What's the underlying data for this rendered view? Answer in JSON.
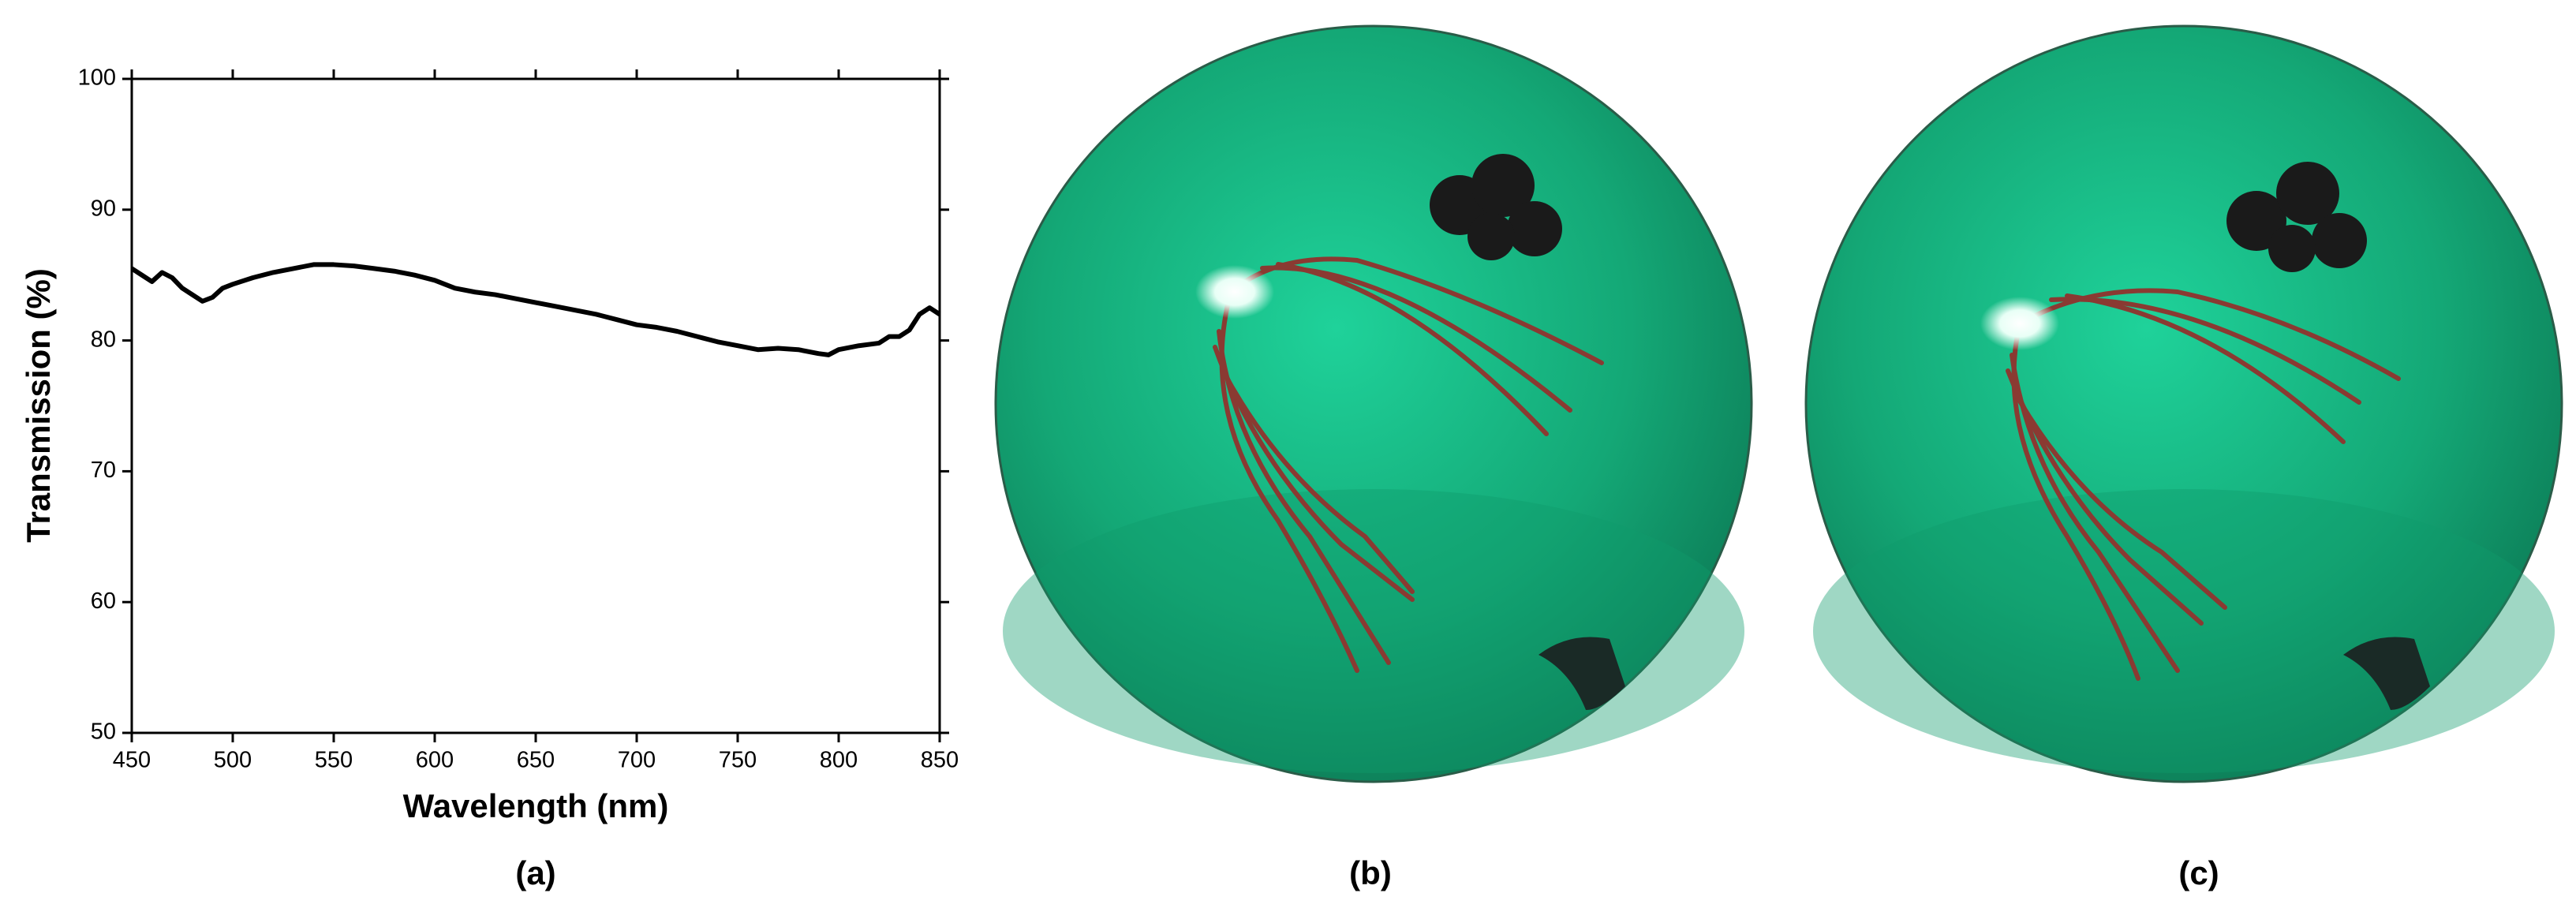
{
  "chart_data": {
    "type": "line",
    "xlabel": "Wavelength (nm)",
    "ylabel": "Transmission (%)",
    "x": [
      450,
      455,
      460,
      465,
      470,
      475,
      480,
      485,
      490,
      495,
      500,
      510,
      520,
      530,
      540,
      550,
      560,
      570,
      580,
      590,
      600,
      610,
      620,
      630,
      640,
      650,
      660,
      670,
      680,
      690,
      700,
      710,
      720,
      730,
      740,
      750,
      760,
      770,
      780,
      790,
      795,
      800,
      810,
      820,
      825,
      830,
      835,
      840,
      845,
      850
    ],
    "values": [
      85.5,
      85,
      84.5,
      85.2,
      84.8,
      84,
      83.5,
      83,
      83.3,
      84,
      84.3,
      84.8,
      85.2,
      85.5,
      85.8,
      85.8,
      85.7,
      85.5,
      85.3,
      85,
      84.6,
      84,
      83.7,
      83.5,
      83.2,
      82.9,
      82.6,
      82.3,
      82,
      81.6,
      81.2,
      81,
      80.7,
      80.3,
      79.9,
      79.6,
      79.3,
      79.4,
      79.3,
      79,
      78.9,
      79.3,
      79.6,
      79.8,
      80.3,
      80.3,
      80.8,
      82,
      82.5,
      82
    ],
    "color": "#000000",
    "xlim": [
      450,
      850
    ],
    "xticks": [
      450,
      500,
      550,
      600,
      650,
      700,
      750,
      800,
      850
    ],
    "ylim": [
      50,
      100
    ],
    "yticks": [
      50,
      60,
      70,
      80,
      90,
      100
    ]
  },
  "figure": {
    "panel_labels": [
      "(a)",
      "(b)",
      "(c)"
    ]
  }
}
